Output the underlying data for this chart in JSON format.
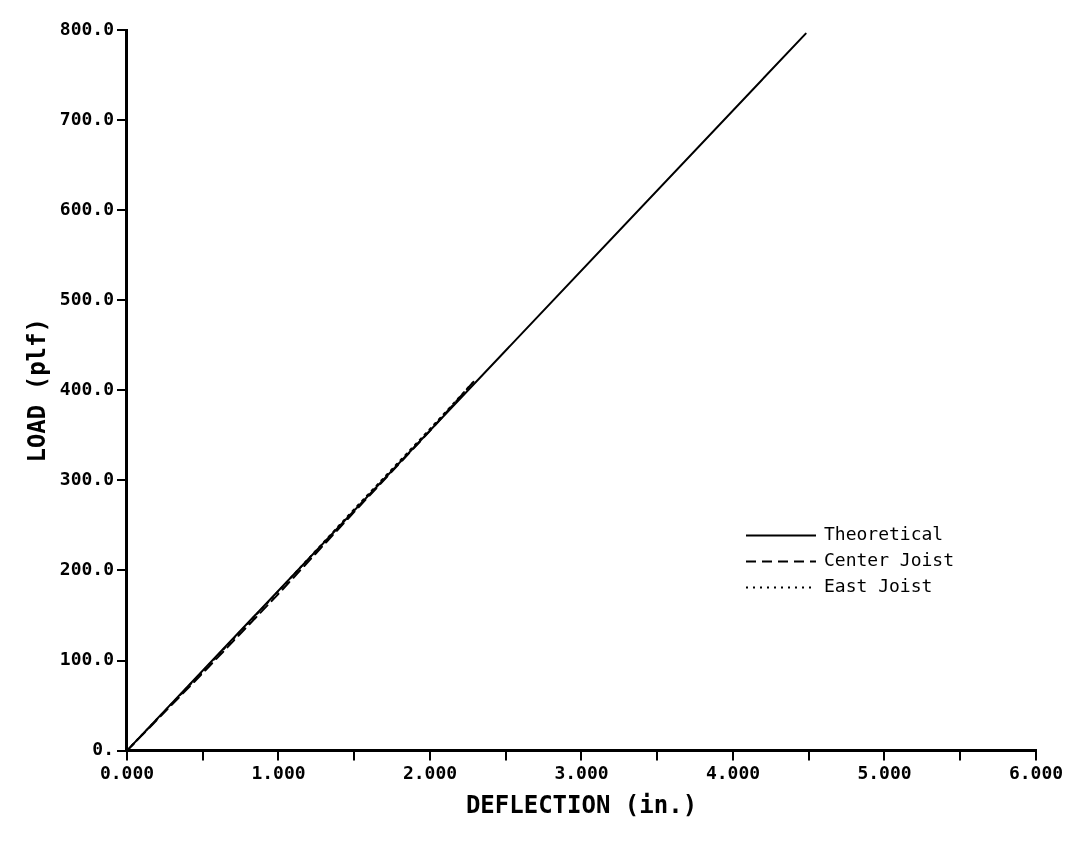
{
  "chart_data": {
    "type": "line",
    "xlabel": "DEFLECTION (in.)",
    "ylabel": "LOAD (plf)",
    "xlim": [
      0,
      6
    ],
    "ylim": [
      0,
      800
    ],
    "xticks": [
      {
        "value": 0,
        "label": "0.000"
      },
      {
        "value": 0.5,
        "label": null
      },
      {
        "value": 1,
        "label": "1.000"
      },
      {
        "value": 1.5,
        "label": null
      },
      {
        "value": 2,
        "label": "2.000"
      },
      {
        "value": 2.5,
        "label": null
      },
      {
        "value": 3,
        "label": "3.000"
      },
      {
        "value": 3.5,
        "label": null
      },
      {
        "value": 4,
        "label": "4.000"
      },
      {
        "value": 4.5,
        "label": null
      },
      {
        "value": 5,
        "label": "5.000"
      },
      {
        "value": 5.5,
        "label": null
      },
      {
        "value": 6,
        "label": "6.000"
      }
    ],
    "yticks": [
      {
        "value": 0,
        "label": "0."
      },
      {
        "value": 100,
        "label": "100.0"
      },
      {
        "value": 200,
        "label": "200.0"
      },
      {
        "value": 300,
        "label": "300.0"
      },
      {
        "value": 400,
        "label": "400.0"
      },
      {
        "value": 500,
        "label": "500.0"
      },
      {
        "value": 600,
        "label": "600.0"
      },
      {
        "value": 700,
        "label": "700.0"
      },
      {
        "value": 800,
        "label": "800.0"
      }
    ],
    "grid": false,
    "legend": "bottom right",
    "series": [
      {
        "name": "Theoretical",
        "color": "#000000",
        "line_style": "solid",
        "x": [
          0,
          4.48
        ],
        "values": [
          0,
          796
        ]
      },
      {
        "name": "Center Joist",
        "color": "#000000",
        "line_style": "dashed",
        "x": [
          0,
          0.5,
          1.0,
          1.5,
          2.0,
          2.3
        ],
        "values": [
          0,
          86,
          174,
          265,
          355,
          412
        ]
      },
      {
        "name": "East Joist",
        "color": "#000000",
        "line_style": "dotted",
        "x": [
          0,
          0.5,
          1.0,
          1.5,
          2.0,
          2.28
        ],
        "values": [
          0,
          88,
          177,
          268,
          357,
          408
        ]
      }
    ]
  }
}
